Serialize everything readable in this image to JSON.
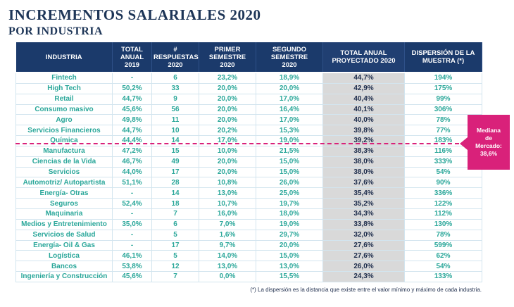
{
  "title": "INCREMENTOS SALARIALES 2020",
  "subtitle": "POR INDUSTRIA",
  "headers": [
    [
      "INDUSTRIA"
    ],
    [
      "TOTAL",
      "ANUAL",
      "2019"
    ],
    [
      "#",
      "RESPUESTAS",
      "2020"
    ],
    [
      "PRIMER",
      "SEMESTRE",
      "2020"
    ],
    [
      "SEGUNDO",
      "SEMESTRE",
      "2020"
    ],
    [
      "TOTAL ANUAL",
      "PROYECTADO 2020"
    ],
    [
      "DISPERSIÓN DE LA",
      "MUESTRA (*)"
    ]
  ],
  "rows": [
    [
      "Fintech",
      "-",
      "6",
      "23,2%",
      "18,9%",
      "44,7%",
      "194%"
    ],
    [
      "High Tech",
      "50,2%",
      "33",
      "20,0%",
      "20,0%",
      "42,9%",
      "175%"
    ],
    [
      "Retail",
      "44,7%",
      "9",
      "20,0%",
      "17,0%",
      "40,4%",
      "99%"
    ],
    [
      "Consumo masivo",
      "45,6%",
      "56",
      "20,0%",
      "16,4%",
      "40,1%",
      "306%"
    ],
    [
      "Agro",
      "49,8%",
      "11",
      "20,0%",
      "17,0%",
      "40,0%",
      "78%"
    ],
    [
      "Servicios Financieros",
      "44,7%",
      "10",
      "20,2%",
      "15,3%",
      "39,8%",
      "77%"
    ],
    [
      "Química",
      "44,4%",
      "14",
      "17,0%",
      "19,0%",
      "39,2%",
      "183%"
    ],
    [
      "Manufactura",
      "47,2%",
      "15",
      "10,0%",
      "21,5%",
      "38,3%",
      "116%"
    ],
    [
      "Ciencias de la Vida",
      "46,7%",
      "49",
      "20,0%",
      "15,0%",
      "38,0%",
      "333%"
    ],
    [
      "Servicios",
      "44,0%",
      "17",
      "20,0%",
      "15,0%",
      "38,0%",
      "54%"
    ],
    [
      "Automotriz/ Autopartista",
      "51,1%",
      "28",
      "10,8%",
      "26,0%",
      "37,6%",
      "90%"
    ],
    [
      "Energía- Otras",
      "-",
      "14",
      "13,0%",
      "25,0%",
      "35,4%",
      "336%"
    ],
    [
      "Seguros",
      "52,4%",
      "18",
      "10,7%",
      "19,7%",
      "35,2%",
      "122%"
    ],
    [
      "Maquinaria",
      "-",
      "7",
      "16,0%",
      "18,0%",
      "34,3%",
      "112%"
    ],
    [
      "Medios y Entretenimiento",
      "35,0%",
      "6",
      "7,0%",
      "19,0%",
      "33,8%",
      "130%"
    ],
    [
      "Servicios de Salud",
      "-",
      "5",
      "1,6%",
      "29,7%",
      "32,0%",
      "78%"
    ],
    [
      "Energía- Oil & Gas",
      "-",
      "17",
      "9,7%",
      "20,0%",
      "27,6%",
      "599%"
    ],
    [
      "Logística",
      "46,1%",
      "5",
      "14,0%",
      "15,0%",
      "27,6%",
      "62%"
    ],
    [
      "Bancos",
      "53,8%",
      "12",
      "13,0%",
      "13,0%",
      "26,0%",
      "54%"
    ],
    [
      "Ingeniería y Construcción",
      "45,6%",
      "7",
      "0,0%",
      "15,5%",
      "24,3%",
      "133%"
    ]
  ],
  "median": {
    "lines": [
      "Mediana",
      "de",
      "Mercado:",
      "38,6%"
    ]
  },
  "footnote": "(*) La dispersión es la distancia que existe entre el valor mínimo y máximo de cada industria.",
  "colors": {
    "header": "#1b3a6b",
    "value": "#2aa79a",
    "projected_bg": "#d9d9d9",
    "median": "#d9217a"
  }
}
